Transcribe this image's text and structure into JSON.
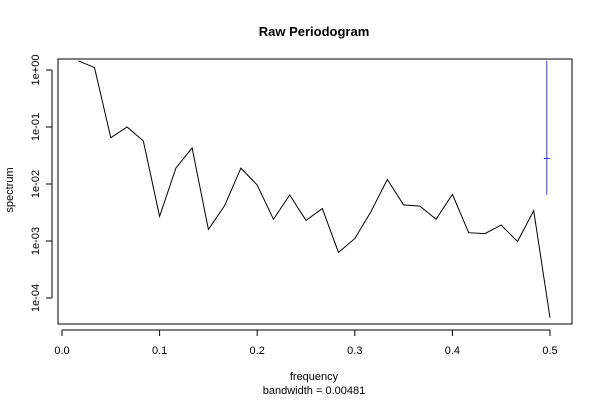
{
  "chart_data": {
    "type": "line",
    "title": "Raw Periodogram",
    "xlabel": "frequency",
    "ylabel": "spectrum",
    "subtitle": "bandwidth = 0.00481",
    "y_scale": "log",
    "xlim": [
      0.0,
      0.5
    ],
    "ylim": [
      3.5e-05,
      2.0
    ],
    "x_ticks": [
      {
        "value": 0.0,
        "label": "0.0"
      },
      {
        "value": 0.1,
        "label": "0.1"
      },
      {
        "value": 0.2,
        "label": "0.2"
      },
      {
        "value": 0.3,
        "label": "0.3"
      },
      {
        "value": 0.4,
        "label": "0.4"
      },
      {
        "value": 0.5,
        "label": "0.5"
      }
    ],
    "y_ticks": [
      {
        "value": 0.0001,
        "label": "1e-04"
      },
      {
        "value": 0.001,
        "label": "1e-03"
      },
      {
        "value": 0.01,
        "label": "1e-02"
      },
      {
        "value": 0.1,
        "label": "1e-01"
      },
      {
        "value": 1,
        "label": "1e+00"
      }
    ],
    "series": [
      {
        "x": [
          0.0167,
          0.0333,
          0.05,
          0.0667,
          0.0833,
          0.1,
          0.1167,
          0.1333,
          0.15,
          0.1667,
          0.1833,
          0.2,
          0.2167,
          0.2333,
          0.25,
          0.2667,
          0.2833,
          0.3,
          0.3167,
          0.3333,
          0.35,
          0.3667,
          0.3833,
          0.4,
          0.4167,
          0.4333,
          0.45,
          0.4667,
          0.4833,
          0.5
        ],
        "values": [
          1.45,
          1.1,
          0.065,
          0.1,
          0.057,
          0.0027,
          0.019,
          0.043,
          0.0016,
          0.0042,
          0.019,
          0.0096,
          0.0024,
          0.0064,
          0.0023,
          0.0037,
          0.00063,
          0.0011,
          0.0033,
          0.012,
          0.0043,
          0.0041,
          0.0024,
          0.0066,
          0.0014,
          0.00135,
          0.0019,
          0.00098,
          0.0034,
          4.5e-05
        ]
      }
    ],
    "confidence_interval": {
      "x": 0.4967,
      "center": 0.028,
      "lower": 0.0065,
      "upper": 1.45,
      "color": "#3333ff"
    }
  }
}
